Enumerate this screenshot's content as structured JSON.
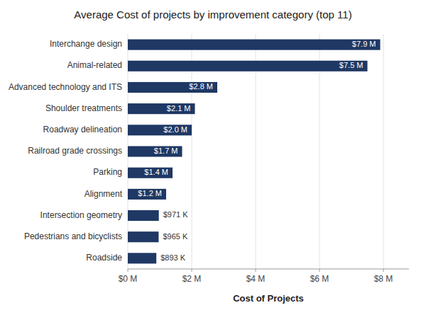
{
  "chart_data": {
    "type": "bar",
    "orientation": "horizontal",
    "title": "Average Cost of projects by improvement category (top 11)",
    "xlabel": "Cost of Projects",
    "categories": [
      "Roadside",
      "Pedestrians and bicyclists",
      "Intersection geometry",
      "Alignment",
      "Parking",
      "Railroad grade crossings",
      "Roadway delineation",
      "Shoulder treatments",
      "Advanced technology and ITS",
      "Animal-related",
      "Interchange design"
    ],
    "values": [
      893000,
      965000,
      971000,
      1200000,
      1400000,
      1700000,
      2000000,
      2100000,
      2800000,
      7500000,
      7900000
    ],
    "value_labels": [
      "$893 K",
      "$965 K",
      "$971 K",
      "$1.2 M",
      "$1.4 M",
      "$1.7 M",
      "$2.0 M",
      "$2.1 M",
      "$2.8 M",
      "$7.5 M",
      "$7.9 M"
    ],
    "data_labels": true,
    "color": "#1F3864",
    "xlim": [
      0,
      8800000
    ],
    "xticks": [
      {
        "value": 0,
        "label": "$0 M"
      },
      {
        "value": 2000000,
        "label": "$2 M"
      },
      {
        "value": 4000000,
        "label": "$4 M"
      },
      {
        "value": 6000000,
        "label": "$6 M"
      },
      {
        "value": 8000000,
        "label": "$8 M"
      }
    ],
    "grid": true
  }
}
